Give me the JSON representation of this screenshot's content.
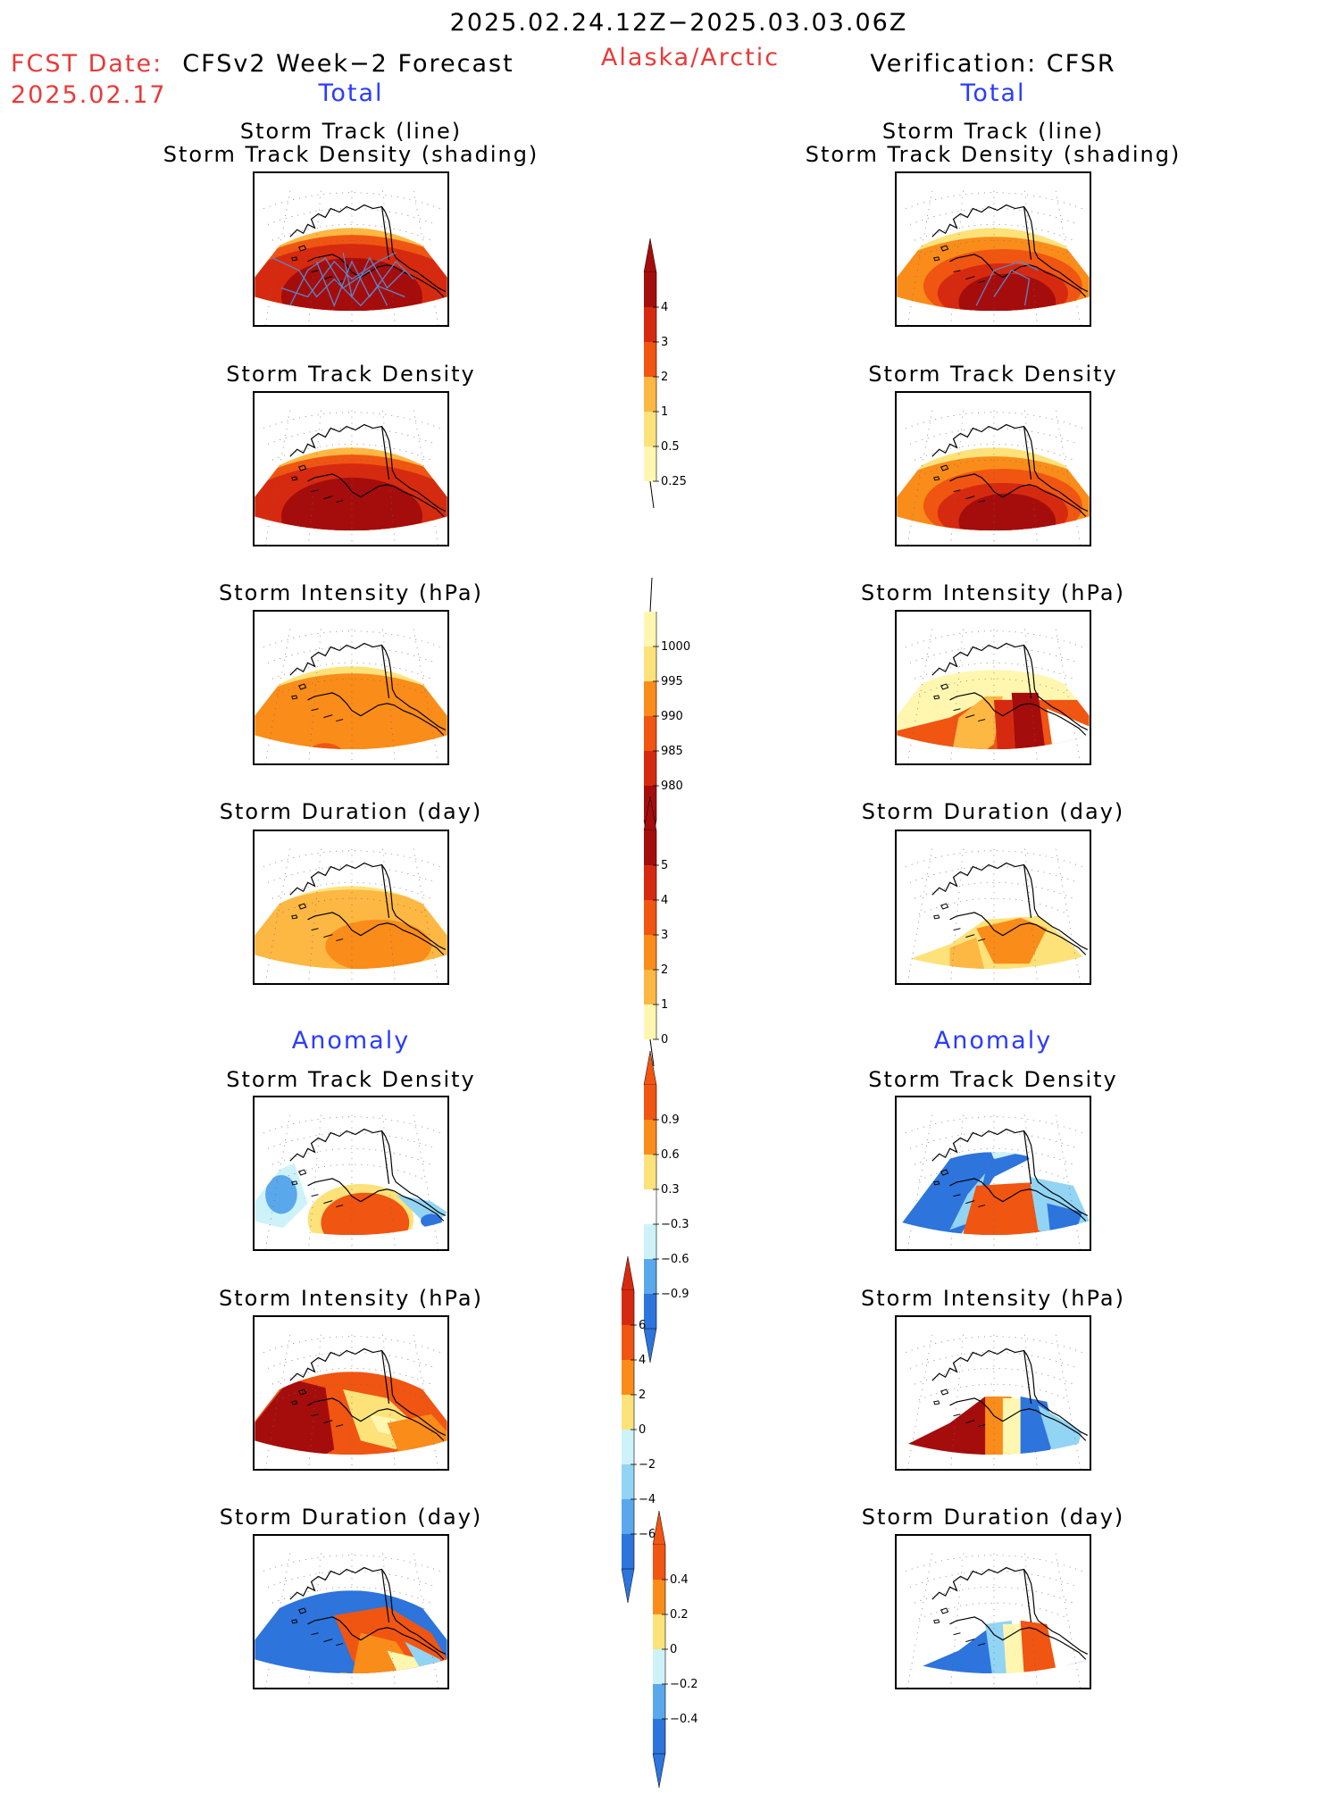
{
  "header": {
    "period": "2025.02.24.12Z−2025.03.03.06Z",
    "fcst_date_label": "FCST Date:",
    "fcst_date_value": "2025.02.17",
    "model_title": "CFSv2 Week−2 Forecast",
    "region": "Alaska/Arctic",
    "verification": "Verification: CFSR"
  },
  "sections": {
    "total": "Total",
    "anomaly": "Anomaly"
  },
  "panel_titles": {
    "track_line": "Storm Track (line)",
    "track_shading": "Storm Track Density (shading)",
    "density": "Storm Track Density",
    "intensity": "Storm Intensity (hPa)",
    "duration": "Storm Duration (day)"
  },
  "colorbars": {
    "total_density": [
      "4",
      "3",
      "2",
      "1",
      "0.5",
      "0.25"
    ],
    "total_intensity": [
      "1000",
      "995",
      "990",
      "985",
      "980"
    ],
    "total_duration": [
      "5",
      "4",
      "3",
      "2",
      "1",
      "0"
    ],
    "anom_density": [
      "0.9",
      "0.6",
      "0.3",
      "−0.3",
      "−0.6",
      "−0.9"
    ],
    "anom_intensity": [
      "6",
      "4",
      "2",
      "0",
      "−2",
      "−4",
      "−6"
    ],
    "anom_duration": [
      "0.4",
      "0.2",
      "0",
      "−0.2",
      "−0.4"
    ]
  },
  "colors": {
    "red_text": "#e83a3a",
    "blue_text": "#2a3cff",
    "warm": [
      "#fff7b0",
      "#fde27a",
      "#fdb743",
      "#fa8c1a",
      "#f05512",
      "#d62a10",
      "#a50d0d"
    ],
    "cool": [
      "#cdf2fa",
      "#92d4f4",
      "#5aa8ec",
      "#2d74dc",
      "#1f4fc0"
    ],
    "track_line": "#5b86c9"
  }
}
